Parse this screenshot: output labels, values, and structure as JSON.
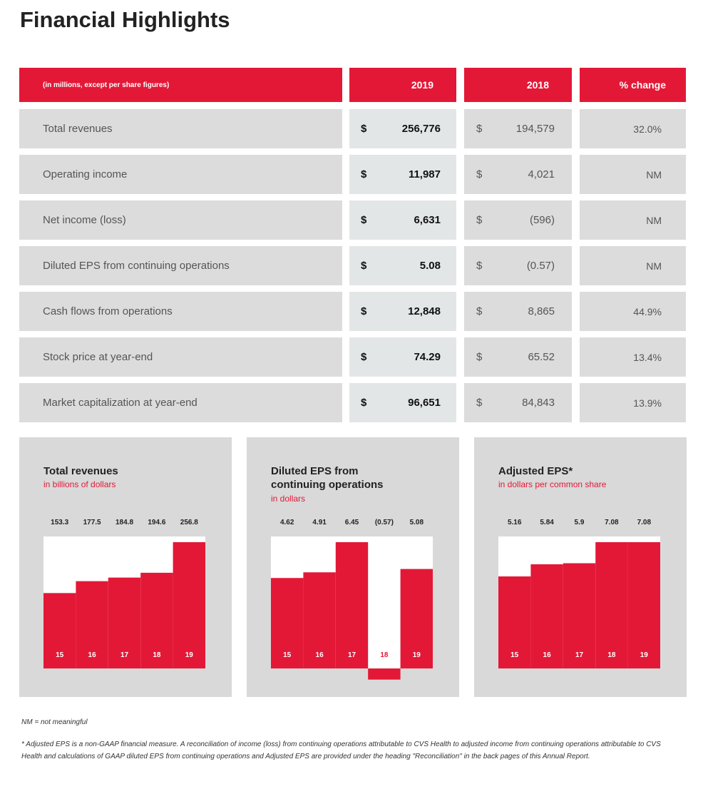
{
  "title": "Financial Highlights",
  "table": {
    "header": [
      "(in millions, except per share figures)",
      "2019",
      "2018",
      "% change"
    ],
    "rows": [
      [
        "Total revenues",
        "$",
        "256,776",
        "$",
        "194,579",
        "32.0%"
      ],
      [
        "Operating income",
        "$",
        "11,987",
        "$",
        "4,021",
        "NM"
      ],
      [
        "Net income (loss)",
        "$",
        "6,631",
        "$",
        "(596)",
        "NM"
      ],
      [
        "Diluted EPS from continuing operations",
        "$",
        "5.08",
        "$",
        "(0.57)",
        "NM"
      ],
      [
        "Cash flows from operations",
        "$",
        "12,848",
        "$",
        "8,865",
        "44.9%"
      ],
      [
        "Stock price at year-end",
        "$",
        "74.29",
        "$",
        "65.52",
        "13.4%"
      ],
      [
        "Market capitalization at year-end",
        "$",
        "96,651",
        "$",
        "84,843",
        "13.9%"
      ]
    ]
  },
  "chart_data": [
    {
      "type": "bar",
      "title": "Total revenues",
      "subtitle": "in billions of dollars",
      "color": "#e31837",
      "categories": [
        "15",
        "16",
        "17",
        "18",
        "19"
      ],
      "values": [
        153.3,
        177.5,
        184.8,
        194.6,
        256.8
      ]
    },
    {
      "type": "bar",
      "title": "Diluted EPS from continuing operations",
      "subtitle": "in dollars",
      "color": "#e31837",
      "categories": [
        "15",
        "16",
        "17",
        "18",
        "19"
      ],
      "values": [
        4.62,
        4.91,
        6.45,
        -0.57,
        5.08
      ],
      "value_labels": [
        "4.62",
        "4.91",
        "6.45",
        "(0.57)",
        "5.08"
      ]
    },
    {
      "type": "bar",
      "title": "Adjusted EPS*",
      "subtitle": "in dollars per common share",
      "color": "#e31837",
      "categories": [
        "15",
        "16",
        "17",
        "18",
        "19"
      ],
      "values": [
        5.16,
        5.84,
        5.9,
        7.08,
        7.08
      ]
    }
  ],
  "notes": [
    "NM = not meaningful",
    "* Adjusted EPS is a non-GAAP financial measure. A reconciliation of income (loss) from continuing operations attributable to CVS Health to adjusted income from continuing operations attributable to CVS Health and calculations of GAAP diluted EPS from continuing operations and Adjusted EPS are provided under the heading \"Reconciliation\" in the back pages of this Annual Report."
  ]
}
